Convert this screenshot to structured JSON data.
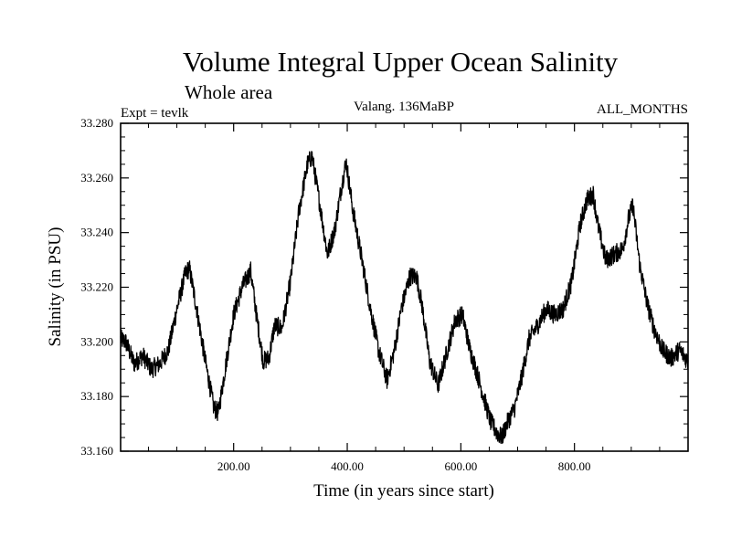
{
  "chart_data": {
    "type": "line",
    "title": "Volume Integral Upper Ocean Salinity",
    "subtitle": "Whole area",
    "annotations": {
      "left": "Expt = tevlk",
      "center": "Valang. 136MaBP",
      "right": "ALL_MONTHS"
    },
    "xlabel": "Time (in years since start)",
    "ylabel": "Salinity (in PSU)",
    "xlim": [
      1,
      1000
    ],
    "ylim": [
      33.16,
      33.28
    ],
    "xticks": [
      {
        "value": 200,
        "label": "200.00"
      },
      {
        "value": 400,
        "label": "400.00"
      },
      {
        "value": 600,
        "label": "600.00"
      },
      {
        "value": 800,
        "label": "800.00"
      }
    ],
    "yticks": [
      {
        "value": 33.16,
        "label": "33.160"
      },
      {
        "value": 33.18,
        "label": "33.180"
      },
      {
        "value": 33.2,
        "label": "33.200"
      },
      {
        "value": 33.22,
        "label": "33.220"
      },
      {
        "value": 33.24,
        "label": "33.240"
      },
      {
        "value": 33.26,
        "label": "33.260"
      },
      {
        "value": 33.28,
        "label": "33.280"
      }
    ],
    "line_color": "#000000",
    "noise_amplitude": 0.0035,
    "series": [
      {
        "name": "salinity",
        "x": [
          1,
          10,
          25,
          40,
          55,
          70,
          85,
          100,
          115,
          122,
          135,
          150,
          165,
          173,
          185,
          200,
          215,
          230,
          240,
          252,
          262,
          272,
          285,
          300,
          315,
          330,
          338,
          352,
          365,
          378,
          390,
          398,
          410,
          425,
          440,
          455,
          470,
          483,
          495,
          510,
          522,
          532,
          545,
          560,
          575,
          590,
          603,
          615,
          628,
          640,
          652,
          663,
          672,
          683,
          695,
          708,
          720,
          735,
          750,
          765,
          780,
          795,
          810,
          822,
          833,
          842,
          855,
          870,
          885,
          895,
          903,
          915,
          928,
          940,
          955,
          970,
          985,
          1000
        ],
        "y": [
          33.201,
          33.2,
          33.192,
          33.195,
          33.19,
          33.192,
          33.197,
          33.212,
          33.225,
          33.227,
          33.212,
          33.193,
          33.176,
          33.174,
          33.19,
          33.21,
          33.22,
          33.226,
          33.21,
          33.193,
          33.194,
          33.206,
          33.205,
          33.222,
          33.248,
          33.265,
          33.268,
          33.25,
          33.232,
          33.241,
          33.257,
          33.266,
          33.248,
          33.231,
          33.213,
          33.197,
          33.186,
          33.197,
          33.212,
          33.224,
          33.224,
          33.213,
          33.193,
          33.184,
          33.196,
          33.208,
          33.21,
          33.198,
          33.189,
          33.18,
          33.171,
          33.167,
          33.165,
          33.171,
          33.176,
          33.188,
          33.201,
          33.206,
          33.212,
          33.21,
          33.212,
          33.222,
          33.243,
          33.252,
          33.254,
          33.242,
          33.23,
          33.232,
          33.234,
          33.245,
          33.25,
          33.228,
          33.214,
          33.205,
          33.197,
          33.194,
          33.197,
          33.193
        ]
      }
    ]
  }
}
